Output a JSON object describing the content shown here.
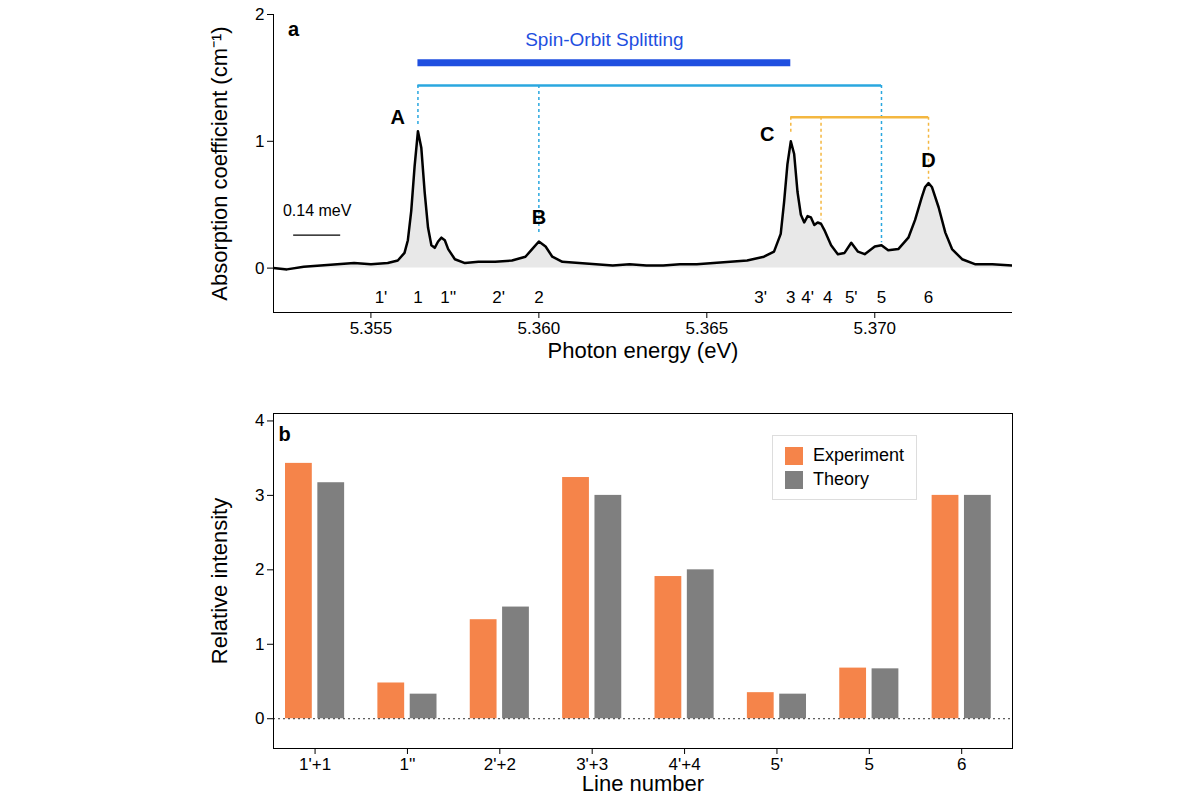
{
  "chart_data": [
    {
      "type": "line",
      "x_label": "Photon energy (eV)",
      "y_label": "Absorption coefficient (cm⁻¹)",
      "color": "#000000",
      "xlim": [
        5.3521,
        5.3741
      ],
      "xticks": [
        5.355,
        {
          "value": 5.36,
          "label": "5.360"
        },
        5.365,
        {
          "value": 5.37,
          "label": "5.370"
        }
      ],
      "ylim": [
        -0.35,
        2
      ],
      "yticks": [
        0,
        1,
        2
      ],
      "x": [
        5.3521,
        5.3525,
        5.353,
        5.3535,
        5.354,
        5.3545,
        5.355,
        5.3555,
        5.3558,
        5.356,
        5.3561,
        5.3562,
        5.3563,
        5.3564,
        5.3565,
        5.3566,
        5.3567,
        5.3568,
        5.3569,
        5.357,
        5.3571,
        5.3572,
        5.3573,
        5.3575,
        5.3578,
        5.3582,
        5.3587,
        5.3592,
        5.3596,
        5.3598,
        5.36,
        5.3602,
        5.3604,
        5.3607,
        5.3612,
        5.3617,
        5.3622,
        5.3627,
        5.3632,
        5.3637,
        5.3642,
        5.3647,
        5.3652,
        5.3657,
        5.3662,
        5.3667,
        5.367,
        5.3672,
        5.3673,
        5.3674,
        5.3675,
        5.3676,
        5.3677,
        5.3678,
        5.3679,
        5.368,
        5.3681,
        5.3682,
        5.3683,
        5.3684,
        5.3685,
        5.3687,
        5.3689,
        5.3691,
        5.3693,
        5.3695,
        5.3697,
        5.37,
        5.3702,
        5.3704,
        5.3707,
        5.371,
        5.3712,
        5.3714,
        5.3715,
        5.3716,
        5.3717,
        5.3719,
        5.3721,
        5.3723,
        5.3726,
        5.373,
        5.3735,
        5.3741
      ],
      "values": [
        0.0,
        -0.01,
        0.01,
        0.02,
        0.03,
        0.04,
        0.03,
        0.04,
        0.06,
        0.12,
        0.22,
        0.45,
        0.8,
        1.08,
        0.95,
        0.6,
        0.32,
        0.18,
        0.16,
        0.21,
        0.24,
        0.22,
        0.15,
        0.07,
        0.04,
        0.05,
        0.05,
        0.06,
        0.09,
        0.15,
        0.21,
        0.17,
        0.09,
        0.05,
        0.04,
        0.03,
        0.02,
        0.03,
        0.02,
        0.02,
        0.03,
        0.03,
        0.04,
        0.05,
        0.06,
        0.09,
        0.13,
        0.27,
        0.52,
        0.82,
        1.0,
        0.9,
        0.6,
        0.42,
        0.36,
        0.41,
        0.4,
        0.34,
        0.36,
        0.35,
        0.3,
        0.18,
        0.11,
        0.12,
        0.2,
        0.13,
        0.11,
        0.17,
        0.18,
        0.14,
        0.15,
        0.24,
        0.38,
        0.56,
        0.64,
        0.67,
        0.64,
        0.48,
        0.28,
        0.15,
        0.07,
        0.03,
        0.03,
        0.02
      ],
      "annotations": [
        {
          "text": "a",
          "x": 5.3527,
          "y": 1.88
        },
        {
          "text": "A",
          "x": 5.3558,
          "y": 1.19
        },
        {
          "text": "B",
          "x": 5.36,
          "y": 0.4
        },
        {
          "text": "C",
          "x": 5.3668,
          "y": 1.05
        },
        {
          "text": "D",
          "x": 5.3716,
          "y": 0.85
        }
      ],
      "spin_orbit": {
        "text": "Spin-Orbit Splitting",
        "x": [
          5.3564,
          5.3675
        ],
        "y": 1.62,
        "text_y": 1.8,
        "color": "#1f4fe0"
      },
      "brackets": [
        {
          "color": "#2aa7df",
          "y": 1.44,
          "x": [
            5.3564,
            5.36,
            5.3702
          ],
          "drops": [
            1.12,
            0.28,
            0.2
          ]
        },
        {
          "color": "#f4b740",
          "y": 1.19,
          "x": [
            5.3675,
            5.3684,
            5.3716
          ],
          "drops": [
            1.05,
            0.38,
            0.7
          ]
        }
      ],
      "scale_bar": {
        "text": "0.14 meV",
        "x": [
          5.3527,
          5.3541
        ],
        "y": 0.26,
        "text_y": 0.45
      },
      "line_labels": [
        {
          "text": "1'",
          "x": 5.3553,
          "y": -0.23
        },
        {
          "text": "1",
          "x": 5.3564,
          "y": -0.23
        },
        {
          "text": "1''",
          "x": 5.3573,
          "y": -0.23
        },
        {
          "text": "2'",
          "x": 5.3588,
          "y": -0.23
        },
        {
          "text": "2",
          "x": 5.36,
          "y": -0.23
        },
        {
          "text": "3'",
          "x": 5.3666,
          "y": -0.23
        },
        {
          "text": "3",
          "x": 5.3675,
          "y": -0.23
        },
        {
          "text": "4'",
          "x": 5.368,
          "y": -0.23
        },
        {
          "text": "4",
          "x": 5.3686,
          "y": -0.23
        },
        {
          "text": "5'",
          "x": 5.3693,
          "y": -0.23
        },
        {
          "text": "5",
          "x": 5.3702,
          "y": -0.23
        },
        {
          "text": "6",
          "x": 5.3716,
          "y": -0.23
        }
      ]
    },
    {
      "type": "bar",
      "x_label": "Line number",
      "y_label": "Relative intensity",
      "categories": [
        "1'+1",
        "1''",
        "2'+2",
        "3'+3",
        "4'+4",
        "5'",
        "5",
        "6"
      ],
      "series": [
        {
          "name": "Experiment",
          "color": "#f5844a",
          "values": [
            3.43,
            0.48,
            1.33,
            3.24,
            1.91,
            0.35,
            0.68,
            3.0
          ]
        },
        {
          "name": "Theory",
          "color": "#7f7f7f",
          "values": [
            3.17,
            0.33,
            1.5,
            3.0,
            2.0,
            0.33,
            0.67,
            3.0
          ]
        }
      ],
      "ylim": [
        -0.4,
        4.1
      ],
      "yticks": [
        0,
        1,
        2,
        3,
        4
      ],
      "legend": "top-right",
      "reference_line": {
        "y": 0,
        "line_style": "dashed"
      },
      "annotations": [
        {
          "text": "b",
          "x": -0.33,
          "y": 3.82
        }
      ]
    }
  ]
}
